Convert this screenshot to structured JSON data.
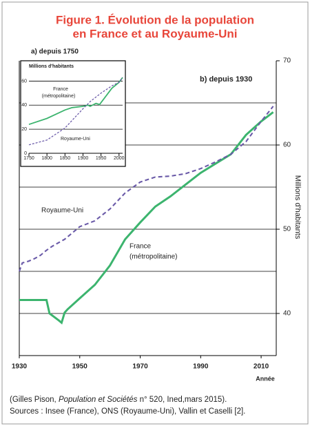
{
  "title": [
    "Figure 1. Évolution de la population",
    "en France et au Royaume-Uni"
  ],
  "chart_data": [
    {
      "type": "line",
      "title": "b) depuis 1930",
      "xlabel": "Année",
      "ylabel": "Millions d'habitants",
      "xlim": [
        1930,
        2015
      ],
      "xticks": [
        1930,
        1950,
        1970,
        1990,
        2010
      ],
      "ylim": [
        35,
        70
      ],
      "yticks": [
        40,
        50,
        60,
        70
      ],
      "ygrid": [
        40,
        45,
        50,
        55,
        60,
        65
      ],
      "annotations": [
        "Royaume-Uni",
        "France",
        "(métropolitaine)"
      ],
      "series": [
        {
          "name": "France",
          "color": "#3cb46e",
          "style": "solid",
          "x": [
            1930,
            1939,
            1940,
            1943,
            1944,
            1945,
            1946,
            1950,
            1955,
            1960,
            1965,
            1970,
            1975,
            1980,
            1985,
            1990,
            1995,
            2000,
            2005,
            2010,
            2014
          ],
          "values": [
            41.6,
            41.6,
            40.0,
            39.2,
            38.9,
            40.1,
            40.5,
            41.8,
            43.4,
            45.7,
            48.8,
            50.8,
            52.7,
            53.9,
            55.3,
            56.7,
            57.8,
            58.9,
            61.2,
            62.8,
            63.9
          ]
        },
        {
          "name": "Royaume-Uni",
          "color": "#6a5aa8",
          "style": "dashed",
          "x": [
            1930,
            1931,
            1933,
            1935,
            1937,
            1939,
            1941,
            1945,
            1950,
            1955,
            1960,
            1965,
            1970,
            1975,
            1980,
            1985,
            1990,
            1995,
            2000,
            2005,
            2010,
            2014
          ],
          "values": [
            45.0,
            46.0,
            46.2,
            46.5,
            46.9,
            47.5,
            48.0,
            48.8,
            50.3,
            51.0,
            52.4,
            54.3,
            55.6,
            56.2,
            56.3,
            56.6,
            57.2,
            58.0,
            58.9,
            60.4,
            62.8,
            64.6
          ]
        }
      ]
    },
    {
      "type": "line",
      "title": "a) depuis 1750",
      "ylabel": "Millions d'habitants",
      "xlim": [
        1750,
        2010
      ],
      "xticks": [
        1750,
        1800,
        1850,
        1900,
        1950,
        2000
      ],
      "ylim": [
        0,
        70
      ],
      "yticks": [
        0,
        20,
        40,
        60
      ],
      "ygrid": [
        20,
        40,
        60
      ],
      "annotations": [
        "France",
        "(métropolitaine)",
        "Royaume-Uni"
      ],
      "series": [
        {
          "name": "France",
          "color": "#3cb46e",
          "style": "solid",
          "x": [
            1750,
            1800,
            1850,
            1870,
            1900,
            1914,
            1920,
            1936,
            1946,
            1960,
            1980,
            2000,
            2010
          ],
          "values": [
            24,
            29,
            36,
            38,
            39,
            40,
            39,
            41.5,
            40.5,
            46,
            54,
            59,
            63
          ]
        },
        {
          "name": "Royaume-Uni",
          "color": "#6a5aa8",
          "style": "dashed",
          "x": [
            1750,
            1800,
            1850,
            1900,
            1920,
            1950,
            1980,
            2000,
            2010
          ],
          "values": [
            7,
            11,
            21,
            37,
            43,
            50,
            56,
            59,
            63
          ]
        }
      ]
    }
  ],
  "footer": {
    "line1": [
      "(Gilles Pison, ",
      "Population et Sociétés",
      " n° 520, Ined,mars 2015)."
    ],
    "line2": "Sources : Insee (France), ONS (Royaume-Uni), Vallin et Caselli [2]."
  }
}
